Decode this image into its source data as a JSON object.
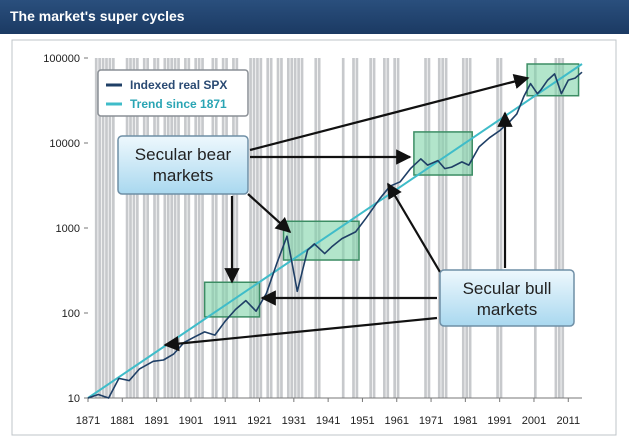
{
  "header": {
    "title": "The market's super cycles"
  },
  "chart_data": {
    "type": "line",
    "title": "",
    "xlabel": "",
    "ylabel": "",
    "yscale": "log",
    "ylim": [
      10,
      100000
    ],
    "xlim": [
      1871,
      2015
    ],
    "grid": false,
    "legend_position": "top-left",
    "x_ticks": [
      "1871",
      "1881",
      "1891",
      "1901",
      "1911",
      "1921",
      "1931",
      "1941",
      "1951",
      "1961",
      "1971",
      "1981",
      "1991",
      "2001",
      "2011"
    ],
    "y_ticks": [
      "10",
      "100",
      "1000",
      "10000",
      "100000"
    ],
    "recession_years": [
      1873,
      1874,
      1875,
      1876,
      1877,
      1878,
      1882,
      1883,
      1884,
      1885,
      1887,
      1888,
      1890,
      1891,
      1893,
      1894,
      1895,
      1896,
      1897,
      1899,
      1900,
      1902,
      1903,
      1904,
      1907,
      1908,
      1910,
      1911,
      1913,
      1914,
      1918,
      1919,
      1920,
      1921,
      1923,
      1924,
      1926,
      1927,
      1929,
      1930,
      1931,
      1932,
      1933,
      1937,
      1938,
      1945,
      1948,
      1949,
      1953,
      1954,
      1957,
      1958,
      1960,
      1961,
      1969,
      1970,
      1973,
      1974,
      1975,
      1980,
      1981,
      1982,
      1990,
      1991,
      2001,
      2007,
      2008,
      2009
    ],
    "series": [
      {
        "name": "Indexed real SPX",
        "color": "#1f3f66",
        "x": [
          1871,
          1874,
          1877,
          1880,
          1883,
          1886,
          1890,
          1893,
          1896,
          1899,
          1902,
          1905,
          1908,
          1911,
          1914,
          1917,
          1920,
          1923,
          1926,
          1929,
          1932,
          1935,
          1937,
          1940,
          1942,
          1945,
          1949,
          1952,
          1956,
          1959,
          1962,
          1965,
          1968,
          1970,
          1973,
          1975,
          1977,
          1980,
          1982,
          1985,
          1988,
          1991,
          1994,
          1996,
          1998,
          2000,
          2002,
          2003,
          2005,
          2007,
          2009,
          2011,
          2013,
          2015
        ],
        "y": [
          10,
          11,
          10,
          17,
          16,
          22,
          27,
          28,
          33,
          45,
          52,
          60,
          55,
          80,
          110,
          140,
          105,
          170,
          380,
          800,
          180,
          550,
          650,
          500,
          600,
          750,
          900,
          1300,
          2200,
          3100,
          3500,
          5000,
          6500,
          5500,
          6200,
          5000,
          5200,
          6000,
          5500,
          9000,
          11500,
          14000,
          18000,
          22000,
          35000,
          50000,
          38000,
          42000,
          55000,
          65000,
          38000,
          55000,
          58000,
          68000
        ]
      },
      {
        "name": "Trend since 1871",
        "color": "#3fbcc9",
        "x": [
          1871,
          2015
        ],
        "y": [
          10,
          85000
        ]
      }
    ],
    "secular_bear_boxes": [
      {
        "x": [
          1905,
          1921
        ],
        "y": [
          90,
          230
        ]
      },
      {
        "x": [
          1928,
          1950
        ],
        "y": [
          420,
          1200
        ]
      },
      {
        "x": [
          1966,
          1983
        ],
        "y": [
          4200,
          13500
        ]
      },
      {
        "x": [
          1999,
          2014
        ],
        "y": [
          36000,
          85000
        ]
      }
    ],
    "annotations": [
      {
        "text_lines": [
          "Secular bear",
          "markets"
        ]
      },
      {
        "text_lines": [
          "Secular bull",
          "markets"
        ]
      }
    ]
  }
}
